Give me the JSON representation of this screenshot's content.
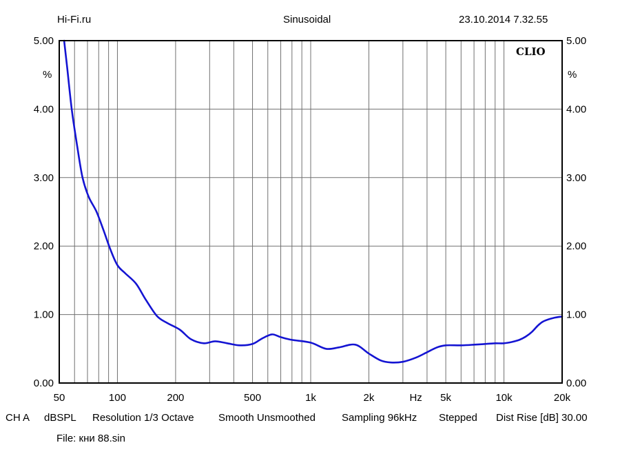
{
  "header": {
    "left": "Hi-Fi.ru",
    "center": "Sinusoidal",
    "right": "23.10.2014 7.32.55"
  },
  "logo_text": "CLIO",
  "footer": {
    "items": [
      "CH A",
      "dBSPL",
      "Resolution 1/3 Octave",
      "Smooth Unsmoothed",
      "Sampling 96kHz",
      "Stepped",
      "Dist Rise [dB] 30.00"
    ],
    "file": "File: кни 88.sin"
  },
  "colors": {
    "curve": "#1414d2",
    "grid": "#707070",
    "frame": "#000000"
  },
  "chart_data": {
    "type": "line",
    "title": "Sinusoidal",
    "x_scale": "log",
    "xlim": [
      50,
      20000
    ],
    "ylim": [
      0,
      5
    ],
    "y_unit": "%",
    "grid": true,
    "x_tick_labels": [
      {
        "x": 50,
        "label": "50"
      },
      {
        "x": 100,
        "label": "100"
      },
      {
        "x": 200,
        "label": "200"
      },
      {
        "x": 500,
        "label": "500"
      },
      {
        "x": 1000,
        "label": "1k"
      },
      {
        "x": 2000,
        "label": "2k"
      },
      {
        "x": 3500,
        "label": "Hz"
      },
      {
        "x": 5000,
        "label": "5k"
      },
      {
        "x": 10000,
        "label": "10k"
      },
      {
        "x": 20000,
        "label": "20k"
      }
    ],
    "y_ticks": [
      "0.00",
      "1.00",
      "2.00",
      "3.00",
      "4.00",
      "5.00"
    ],
    "series": [
      {
        "x": [
          53,
          55,
          58,
          62,
          66,
          71,
          78,
          85,
          92,
          100,
          110,
          125,
          140,
          160,
          180,
          210,
          240,
          280,
          320,
          370,
          430,
          500,
          560,
          630,
          700,
          800,
          1000,
          1200,
          1400,
          1700,
          2000,
          2300,
          2600,
          3000,
          3500,
          4000,
          4500,
          5000,
          6000,
          7000,
          8000,
          9000,
          10000,
          11000,
          12000,
          13000,
          14000,
          15000,
          16000,
          18000,
          20000
        ],
        "y": [
          5.0,
          4.6,
          4.0,
          3.45,
          3.0,
          2.72,
          2.5,
          2.22,
          1.95,
          1.72,
          1.6,
          1.45,
          1.22,
          0.98,
          0.88,
          0.78,
          0.64,
          0.58,
          0.61,
          0.58,
          0.55,
          0.57,
          0.65,
          0.71,
          0.67,
          0.63,
          0.59,
          0.5,
          0.52,
          0.56,
          0.43,
          0.33,
          0.3,
          0.31,
          0.37,
          0.45,
          0.52,
          0.55,
          0.55,
          0.56,
          0.57,
          0.58,
          0.58,
          0.6,
          0.63,
          0.68,
          0.75,
          0.84,
          0.9,
          0.95,
          0.97
        ]
      }
    ]
  }
}
